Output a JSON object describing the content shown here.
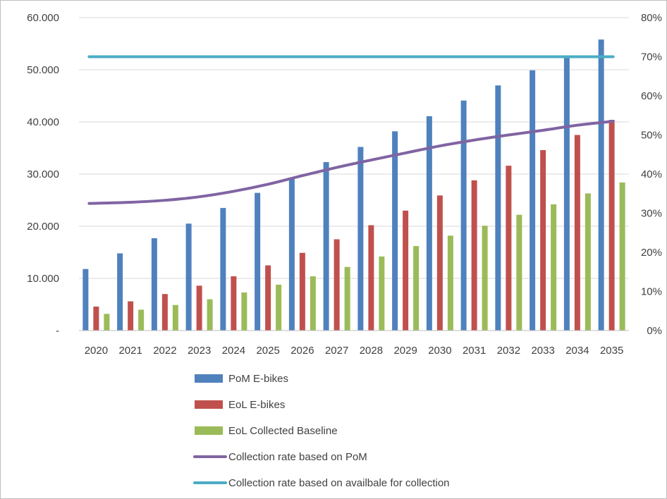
{
  "chart_data": {
    "type": "bar",
    "title": "",
    "xlabel": "",
    "ylabel": "",
    "categories": [
      "2020",
      "2021",
      "2022",
      "2023",
      "2024",
      "2025",
      "2026",
      "2027",
      "2028",
      "2029",
      "2030",
      "2031",
      "2032",
      "2033",
      "2034",
      "2035"
    ],
    "ylim": [
      0,
      60000
    ],
    "y2lim": [
      0,
      0.8
    ],
    "y_ticks": [
      {
        "value": 0,
        "label": "-"
      },
      {
        "value": 10000,
        "label": "10.000"
      },
      {
        "value": 20000,
        "label": "20.000"
      },
      {
        "value": 30000,
        "label": "30.000"
      },
      {
        "value": 40000,
        "label": "40.000"
      },
      {
        "value": 50000,
        "label": "50.000"
      },
      {
        "value": 60000,
        "label": "60.000"
      }
    ],
    "y2_ticks": [
      {
        "value": 0,
        "label": "0%"
      },
      {
        "value": 0.1,
        "label": "10%"
      },
      {
        "value": 0.2,
        "label": "20%"
      },
      {
        "value": 0.3,
        "label": "30%"
      },
      {
        "value": 0.4,
        "label": "40%"
      },
      {
        "value": 0.5,
        "label": "50%"
      },
      {
        "value": 0.6,
        "label": "60%"
      },
      {
        "value": 0.7,
        "label": "70%"
      },
      {
        "value": 0.8,
        "label": "80%"
      }
    ],
    "grid": true,
    "legend_position": "bottom",
    "series": [
      {
        "name": "PoM E-bikes",
        "kind": "bar",
        "axis": "left",
        "color": "#4f81bd",
        "values": [
          11800,
          14800,
          17700,
          20500,
          23500,
          26400,
          29300,
          32300,
          35200,
          38200,
          41100,
          44100,
          47000,
          49900,
          52600,
          55800
        ]
      },
      {
        "name": "EoL E-bikes",
        "kind": "bar",
        "axis": "left",
        "color": "#c0504d",
        "values": [
          4600,
          5600,
          7000,
          8600,
          10400,
          12500,
          14900,
          17500,
          20200,
          23000,
          25900,
          28800,
          31600,
          34600,
          37500,
          40400
        ]
      },
      {
        "name": "EoL Collected Baseline",
        "kind": "bar",
        "axis": "left",
        "color": "#9bbb59",
        "values": [
          3200,
          4000,
          4900,
          6000,
          7300,
          8800,
          10400,
          12200,
          14200,
          16200,
          18200,
          20100,
          22200,
          24200,
          26300,
          28400
        ]
      },
      {
        "name": "Collection rate based on PoM",
        "kind": "line",
        "axis": "right",
        "color": "#8064a2",
        "values": [
          0.325,
          0.328,
          0.333,
          0.342,
          0.356,
          0.374,
          0.396,
          0.417,
          0.436,
          0.454,
          0.472,
          0.487,
          0.5,
          0.512,
          0.525,
          0.535
        ]
      },
      {
        "name": "Collection rate based on availbale for collection",
        "kind": "line",
        "axis": "right",
        "color": "#4bacc6",
        "values": [
          0.7,
          0.7,
          0.7,
          0.7,
          0.7,
          0.7,
          0.7,
          0.7,
          0.7,
          0.7,
          0.7,
          0.7,
          0.7,
          0.7,
          0.7,
          0.7
        ]
      }
    ]
  }
}
